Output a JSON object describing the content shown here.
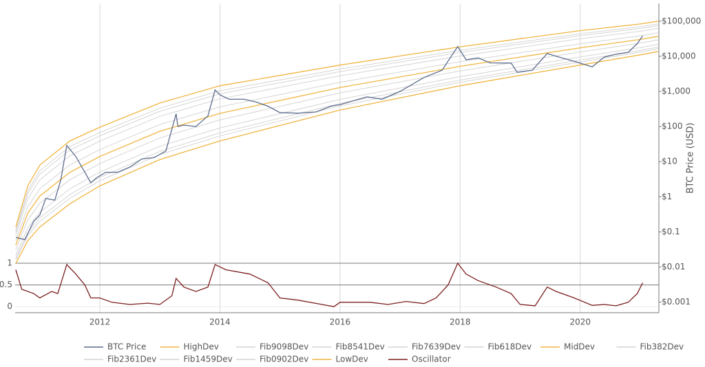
{
  "chart_data": {
    "type": "line",
    "y_label": "BTC Price (USD)",
    "xlim": [
      2010.59,
      2021.31
    ],
    "xticks": [
      2012,
      2014,
      2016,
      2018,
      2020
    ],
    "xgrid": true,
    "ylim": [
      0.0005,
      320000
    ],
    "log_y": true,
    "yticks": [
      {
        "value": 0.001,
        "label": "$0.001"
      },
      {
        "value": 0.01,
        "label": "$0.01"
      },
      {
        "value": 0.1,
        "label": "$0.1"
      },
      {
        "value": 1,
        "label": "$1"
      },
      {
        "value": 10,
        "label": "$10"
      },
      {
        "value": 100,
        "label": "$100"
      },
      {
        "value": 1000,
        "label": "$1,000"
      },
      {
        "value": 10000,
        "label": "$10,000"
      },
      {
        "value": 100000,
        "label": "$100,000"
      }
    ],
    "y2lim": [
      -0.14,
      1
    ],
    "y2ticks": [
      0,
      0.5,
      1
    ],
    "legend": "bottom",
    "x": [
      2010.6,
      2010.8,
      2011,
      2011.5,
      2012,
      2013,
      2014,
      2016,
      2018,
      2020,
      2021,
      2021.3
    ],
    "series": [
      {
        "name": "BTC Price",
        "color": "#5b6b8c",
        "x": [
          2010.6,
          2010.75,
          2010.9,
          2011.0,
          2011.1,
          2011.25,
          2011.35,
          2011.45,
          2011.6,
          2011.75,
          2011.85,
          2011.95,
          2012.1,
          2012.3,
          2012.5,
          2012.7,
          2012.9,
          2013.1,
          2013.27,
          2013.3,
          2013.4,
          2013.6,
          2013.8,
          2013.92,
          2014.0,
          2014.15,
          2014.4,
          2014.6,
          2014.8,
          2015.0,
          2015.3,
          2015.6,
          2015.85,
          2016.0,
          2016.45,
          2016.7,
          2017.0,
          2017.4,
          2017.7,
          2017.96,
          2018.1,
          2018.3,
          2018.5,
          2018.85,
          2018.95,
          2019.2,
          2019.45,
          2019.6,
          2019.9,
          2020.2,
          2020.4,
          2020.6,
          2020.8,
          2020.95,
          2021.04
        ],
        "values": [
          0.07,
          0.06,
          0.2,
          0.3,
          0.9,
          0.8,
          3,
          29,
          14,
          5,
          2.5,
          3.5,
          5,
          5,
          7,
          12,
          13,
          20,
          230,
          100,
          110,
          100,
          200,
          1100,
          800,
          600,
          600,
          500,
          380,
          250,
          240,
          260,
          380,
          420,
          700,
          600,
          1000,
          2500,
          4000,
          19000,
          8000,
          9000,
          6500,
          6400,
          3500,
          4000,
          12000,
          10000,
          7200,
          5000,
          9500,
          11500,
          13000,
          23000,
          38000
        ]
      },
      {
        "name": "HighDev",
        "color": "#f0b440",
        "values": [
          0.138,
          2.04,
          7.94,
          38.9,
          95.5,
          468,
          1445,
          5620,
          18600,
          53700,
          83200,
          100000
        ]
      },
      {
        "name": "Fib9098Dev",
        "color": "#d4d4d4",
        "values": [
          0.111,
          1.48,
          5.51,
          26.9,
          67.5,
          335,
          1042,
          4320,
          14800,
          43900,
          69300,
          83600
        ]
      },
      {
        "name": "Fib8541Dev",
        "color": "#d4d4d4",
        "values": [
          0.097,
          1.21,
          4.4,
          21.3,
          54.5,
          272,
          853,
          3660,
          12800,
          38600,
          61900,
          75000
        ]
      },
      {
        "name": "Fib7639Dev",
        "color": "#d4d4d4",
        "values": [
          0.078,
          0.87,
          3.05,
          14.7,
          38.5,
          195,
          615,
          2800,
          10200,
          31600,
          51500,
          62700
        ]
      },
      {
        "name": "Fib618Dev",
        "color": "#d4d4d4",
        "values": [
          0.055,
          0.52,
          1.69,
          8.05,
          22.0,
          114,
          363,
          1820,
          7020,
          22700,
          38400,
          46900
        ]
      },
      {
        "name": "MidDev",
        "color": "#f0b440",
        "values": [
          0.042,
          0.34,
          1.05,
          4.95,
          14.0,
          73.3,
          237,
          1290,
          5190,
          17400,
          30200,
          37200
        ]
      },
      {
        "name": "Fib382Dev",
        "color": "#d4d4d4",
        "values": [
          0.031,
          0.22,
          0.65,
          3.05,
          8.87,
          47.3,
          155,
          910,
          3840,
          13300,
          23800,
          29400
        ]
      },
      {
        "name": "Fib2361Dev",
        "color": "#d4d4d4",
        "values": [
          0.022,
          0.13,
          0.36,
          1.67,
          5.06,
          27.5,
          91.4,
          592,
          2640,
          9570,
          17700,
          22000
        ]
      },
      {
        "name": "Fib1459Dev",
        "color": "#d4d4d4",
        "values": [
          0.018,
          0.095,
          0.25,
          1.15,
          3.58,
          19.7,
          65.9,
          454,
          2100,
          7820,
          14700,
          18400
        ]
      },
      {
        "name": "Fib0902Dev",
        "color": "#d4d4d4",
        "values": [
          0.016,
          0.078,
          0.2,
          0.91,
          2.89,
          16.0,
          54.0,
          385,
          1820,
          6890,
          13200,
          16500
        ]
      },
      {
        "name": "LowDev",
        "color": "#f0b440",
        "values": [
          0.0126,
          0.056,
          0.138,
          0.63,
          2.04,
          11.5,
          38.9,
          295,
          1450,
          5620,
          11000,
          13800
        ]
      },
      {
        "name": "Oscillator",
        "color": "#7a1c1c",
        "axis": "y2",
        "x": [
          2010.6,
          2010.7,
          2010.9,
          2011.0,
          2011.2,
          2011.3,
          2011.45,
          2011.6,
          2011.75,
          2011.85,
          2012.0,
          2012.2,
          2012.5,
          2012.8,
          2013.0,
          2013.2,
          2013.27,
          2013.4,
          2013.6,
          2013.8,
          2013.92,
          2014.1,
          2014.5,
          2014.8,
          2015.0,
          2015.3,
          2015.7,
          2015.9,
          2016.0,
          2016.5,
          2016.8,
          2017.1,
          2017.4,
          2017.6,
          2017.8,
          2017.96,
          2018.1,
          2018.3,
          2018.6,
          2018.85,
          2019.0,
          2019.25,
          2019.45,
          2019.6,
          2019.9,
          2020.2,
          2020.4,
          2020.6,
          2020.8,
          2020.95,
          2021.04
        ],
        "values": [
          0.85,
          0.4,
          0.3,
          0.2,
          0.35,
          0.3,
          0.97,
          0.75,
          0.5,
          0.2,
          0.2,
          0.1,
          0.05,
          0.08,
          0.05,
          0.25,
          0.65,
          0.45,
          0.35,
          0.45,
          0.97,
          0.85,
          0.75,
          0.55,
          0.2,
          0.15,
          0.05,
          0,
          0.1,
          0.1,
          0.05,
          0.12,
          0.07,
          0.2,
          0.5,
          1,
          0.75,
          0.6,
          0.45,
          0.3,
          0.05,
          0.02,
          0.45,
          0.35,
          0.2,
          0.03,
          0.05,
          0.02,
          0.1,
          0.3,
          0.55
        ]
      }
    ]
  }
}
